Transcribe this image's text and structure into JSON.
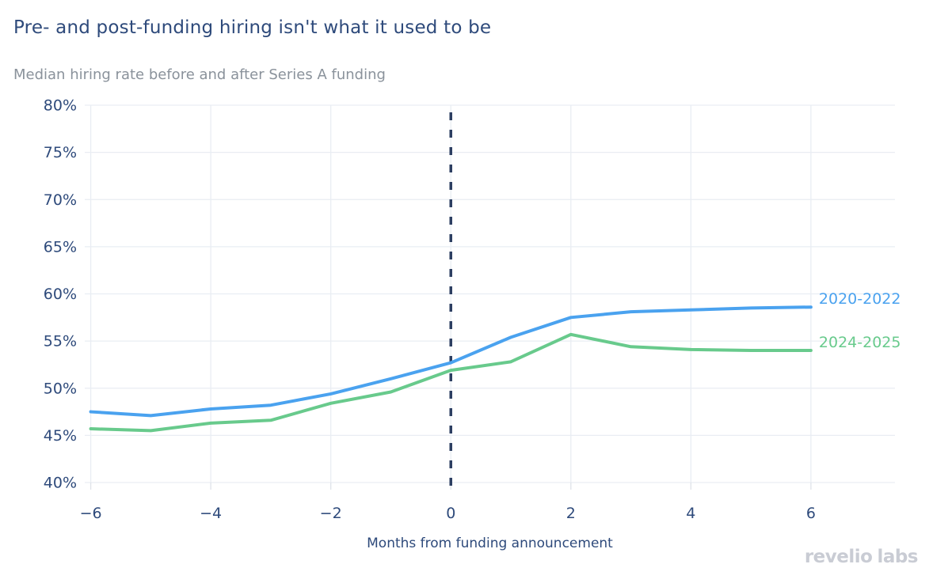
{
  "header": {
    "title": "Pre- and post-funding hiring isn't what it used to be",
    "subtitle": "Median hiring rate before and after Series A funding"
  },
  "chart_data": {
    "type": "line",
    "title": "Pre- and post-funding hiring isn't what it used to be",
    "subtitle": "Median hiring rate before and after Series A funding",
    "xlabel": "Months from funding announcement",
    "ylabel": "",
    "x": [
      -6,
      -5,
      -4,
      -3,
      -2,
      -1,
      0,
      1,
      2,
      3,
      4,
      5,
      6
    ],
    "series": [
      {
        "name": "2020-2022",
        "color": "#4aa2ef",
        "values": [
          47.5,
          47.1,
          47.8,
          48.2,
          49.4,
          51.0,
          52.7,
          55.4,
          57.5,
          58.1,
          58.3,
          58.5,
          58.6
        ]
      },
      {
        "name": "2024-2025",
        "color": "#68ca8c",
        "values": [
          45.7,
          45.5,
          46.3,
          46.6,
          48.4,
          49.6,
          51.9,
          52.8,
          55.7,
          54.4,
          54.1,
          54.0,
          54.0
        ]
      }
    ],
    "ylim": [
      40,
      80
    ],
    "xlim": [
      -6.1,
      7.4
    ],
    "yticks": [
      40,
      45,
      50,
      55,
      60,
      65,
      70,
      75,
      80
    ],
    "ytick_labels": [
      "40%",
      "45%",
      "50%",
      "55%",
      "60%",
      "65%",
      "70%",
      "75%",
      "80%"
    ],
    "xticks": [
      -6,
      -4,
      -2,
      0,
      2,
      4,
      6
    ],
    "xtick_labels": [
      "−6",
      "−4",
      "−2",
      "0",
      "2",
      "4",
      "6"
    ],
    "grid": true,
    "legend_position": "labels-at-line-end-right",
    "reference_line": {
      "x": 0,
      "style": "dashed",
      "color": "#2c3e61"
    }
  },
  "branding": {
    "logo_word_1": "revelio",
    "logo_word_2": "labs"
  },
  "colors": {
    "title_text": "#2e4a7b",
    "subtitle_text": "#8a929b",
    "axis_text": "#2e4a7b",
    "gridline": "#e9edf3",
    "tick": "#dfe3e9",
    "reference_line": "#2c3e61",
    "series_blue": "#4aa2ef",
    "series_green": "#68ca8c",
    "logo_text": "#c9ccd4",
    "background": "#ffffff"
  }
}
